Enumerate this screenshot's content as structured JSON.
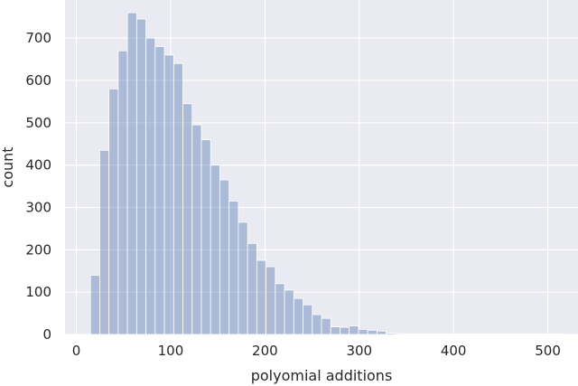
{
  "chart_data": {
    "type": "bar",
    "subtype": "histogram",
    "title": "",
    "xlabel": "polyomial additions",
    "ylabel": "count",
    "xlim": [
      -12,
      532
    ],
    "ylim": [
      0,
      790
    ],
    "xticks": [
      0,
      100,
      200,
      300,
      400,
      500
    ],
    "yticks": [
      0,
      100,
      200,
      300,
      400,
      500,
      600,
      700
    ],
    "grid": true,
    "bin_start": 15,
    "bin_width": 9.8,
    "counts": [
      140,
      435,
      580,
      670,
      760,
      745,
      700,
      680,
      660,
      640,
      545,
      495,
      460,
      400,
      365,
      315,
      265,
      215,
      175,
      160,
      120,
      105,
      85,
      70,
      47,
      38,
      18,
      17,
      20,
      12,
      10,
      8,
      3,
      2,
      1,
      1,
      1,
      1,
      1,
      1,
      1,
      1,
      1,
      1,
      1,
      1,
      1,
      1,
      1,
      1,
      1
    ],
    "bar_color": "#4c72b0",
    "background_color": "#eaeaf2"
  }
}
